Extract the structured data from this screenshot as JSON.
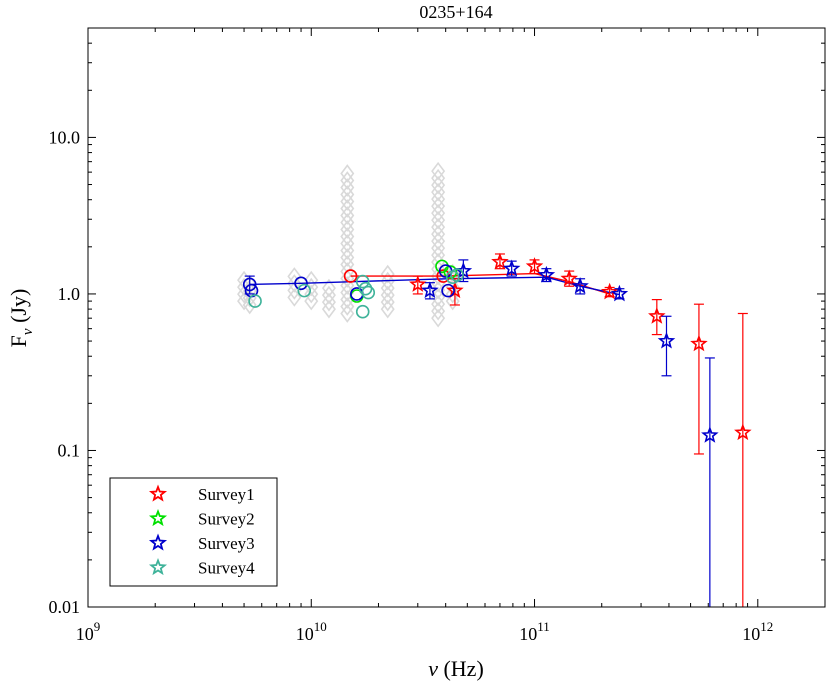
{
  "chart_data": {
    "type": "scatter",
    "title": "0235+164",
    "xlabel": "ν (Hz)",
    "ylabel": "F_ν (Jy)",
    "xscale": "log",
    "yscale": "log",
    "xlim": [
      1000000000.0,
      2000000000000.0
    ],
    "ylim": [
      0.01,
      50
    ],
    "x_ticks": [
      {
        "value": 1000000000.0,
        "base": "10",
        "exp": "9"
      },
      {
        "value": 10000000000.0,
        "base": "10",
        "exp": "10"
      },
      {
        "value": 100000000000.0,
        "base": "10",
        "exp": "11"
      },
      {
        "value": 1000000000000.0,
        "base": "10",
        "exp": "12"
      }
    ],
    "y_ticks": [
      {
        "value": 0.01,
        "label": "0.01"
      },
      {
        "value": 0.1,
        "label": "0.1"
      },
      {
        "value": 1,
        "label": "1.0"
      },
      {
        "value": 10,
        "label": "10.0"
      }
    ],
    "legend_position": "bottom-left",
    "legend": [
      {
        "name": "Survey1",
        "color": "#ff0000"
      },
      {
        "name": "Survey2",
        "color": "#00e000"
      },
      {
        "name": "Survey3",
        "color": "#0000cc"
      },
      {
        "name": "Survey4",
        "color": "#3fb39a"
      }
    ],
    "background": {
      "name": "archival",
      "color": "#d9d9d9",
      "columns": [
        {
          "x": 5000000000.0,
          "ymin": 0.9,
          "ymax": 1.3
        },
        {
          "x": 5300000000.0,
          "ymin": 0.85,
          "ymax": 1.25
        },
        {
          "x": 8400000000.0,
          "ymin": 0.95,
          "ymax": 1.35
        },
        {
          "x": 10000000000.0,
          "ymin": 0.9,
          "ymax": 1.3
        },
        {
          "x": 12000000000.0,
          "ymin": 0.8,
          "ymax": 1.2
        },
        {
          "x": 14500000000.0,
          "ymin": 0.75,
          "ymax": 6.3
        },
        {
          "x": 22000000000.0,
          "ymin": 0.8,
          "ymax": 1.4
        },
        {
          "x": 37000000000.0,
          "ymin": 0.7,
          "ymax": 6.3
        },
        {
          "x": 43000000000.0,
          "ymin": 0.9,
          "ymax": 1.4
        }
      ]
    },
    "series": [
      {
        "name": "Survey1",
        "color": "#ff0000",
        "marker": "star",
        "points": [
          {
            "x": 30000000000.0,
            "y": 1.15,
            "lo": 1.0,
            "hi": 1.3
          },
          {
            "x": 44000000000.0,
            "y": 1.05,
            "lo": 0.85,
            "hi": 1.25
          },
          {
            "x": 70000000000.0,
            "y": 1.6,
            "lo": 1.45,
            "hi": 1.8
          },
          {
            "x": 100000000000.0,
            "y": 1.5,
            "lo": 1.35,
            "hi": 1.65
          },
          {
            "x": 143000000000.0,
            "y": 1.25,
            "lo": 1.12,
            "hi": 1.4
          },
          {
            "x": 217000000000.0,
            "y": 1.03,
            "lo": 0.96,
            "hi": 1.1
          },
          {
            "x": 353000000000.0,
            "y": 0.72,
            "lo": 0.55,
            "hi": 0.92
          },
          {
            "x": 545000000000.0,
            "y": 0.48,
            "lo": 0.095,
            "hi": 0.86
          },
          {
            "x": 857000000000.0,
            "y": 0.13,
            "lo": 0.01,
            "hi": 0.75
          }
        ],
        "circles": [
          {
            "x": 15000000000.0,
            "y": 1.3
          },
          {
            "x": 39000000000.0,
            "y": 1.3
          }
        ],
        "line": [
          {
            "x": 15000000000.0,
            "y": 1.3
          },
          {
            "x": 39000000000.0,
            "y": 1.3
          },
          {
            "x": 70000000000.0,
            "y": 1.33
          },
          {
            "x": 100000000000.0,
            "y": 1.35
          },
          {
            "x": 143000000000.0,
            "y": 1.2
          },
          {
            "x": 217000000000.0,
            "y": 1.0
          }
        ]
      },
      {
        "name": "Survey2",
        "color": "#00e000",
        "marker": "star",
        "points": [],
        "circles": [
          {
            "x": 16000000000.0,
            "y": 0.97
          },
          {
            "x": 38500000000.0,
            "y": 1.5
          },
          {
            "x": 42000000000.0,
            "y": 1.38
          }
        ],
        "line": []
      },
      {
        "name": "Survey3",
        "color": "#0000cc",
        "marker": "star",
        "points": [
          {
            "x": 34000000000.0,
            "y": 1.05,
            "lo": 0.93,
            "hi": 1.18
          },
          {
            "x": 48000000000.0,
            "y": 1.4,
            "lo": 1.2,
            "hi": 1.65
          },
          {
            "x": 79000000000.0,
            "y": 1.45,
            "lo": 1.3,
            "hi": 1.62
          },
          {
            "x": 113000000000.0,
            "y": 1.32,
            "lo": 1.2,
            "hi": 1.45
          },
          {
            "x": 160000000000.0,
            "y": 1.12,
            "lo": 1.0,
            "hi": 1.25
          },
          {
            "x": 240000000000.0,
            "y": 1.0,
            "lo": 0.93,
            "hi": 1.08
          },
          {
            "x": 390000000000.0,
            "y": 0.5,
            "lo": 0.3,
            "hi": 0.72
          },
          {
            "x": 610000000000.0,
            "y": 0.125,
            "lo": 0.01,
            "hi": 0.39
          }
        ],
        "circles": [
          {
            "x": 5300000000.0,
            "y": 1.15,
            "lo": 1.0,
            "hi": 1.3
          },
          {
            "x": 5400000000.0,
            "y": 1.05
          },
          {
            "x": 9000000000.0,
            "y": 1.17
          },
          {
            "x": 16000000000.0,
            "y": 1.0
          },
          {
            "x": 40000000000.0,
            "y": 1.4
          },
          {
            "x": 41000000000.0,
            "y": 1.05
          }
        ],
        "line": [
          {
            "x": 5300000000.0,
            "y": 1.15
          },
          {
            "x": 9000000000.0,
            "y": 1.17
          },
          {
            "x": 16000000000.0,
            "y": 1.2
          },
          {
            "x": 40000000000.0,
            "y": 1.25
          },
          {
            "x": 113000000000.0,
            "y": 1.28
          },
          {
            "x": 160000000000.0,
            "y": 1.12
          },
          {
            "x": 240000000000.0,
            "y": 0.99
          }
        ]
      },
      {
        "name": "Survey4",
        "color": "#3fb39a",
        "marker": "star",
        "points": [],
        "circles": [
          {
            "x": 5600000000.0,
            "y": 0.9
          },
          {
            "x": 9300000000.0,
            "y": 1.05
          },
          {
            "x": 17000000000.0,
            "y": 1.2
          },
          {
            "x": 17500000000.0,
            "y": 1.08
          },
          {
            "x": 18000000000.0,
            "y": 1.02
          },
          {
            "x": 17000000000.0,
            "y": 0.77
          },
          {
            "x": 43000000000.0,
            "y": 1.28
          },
          {
            "x": 45000000000.0,
            "y": 1.32
          }
        ],
        "line": []
      }
    ]
  }
}
